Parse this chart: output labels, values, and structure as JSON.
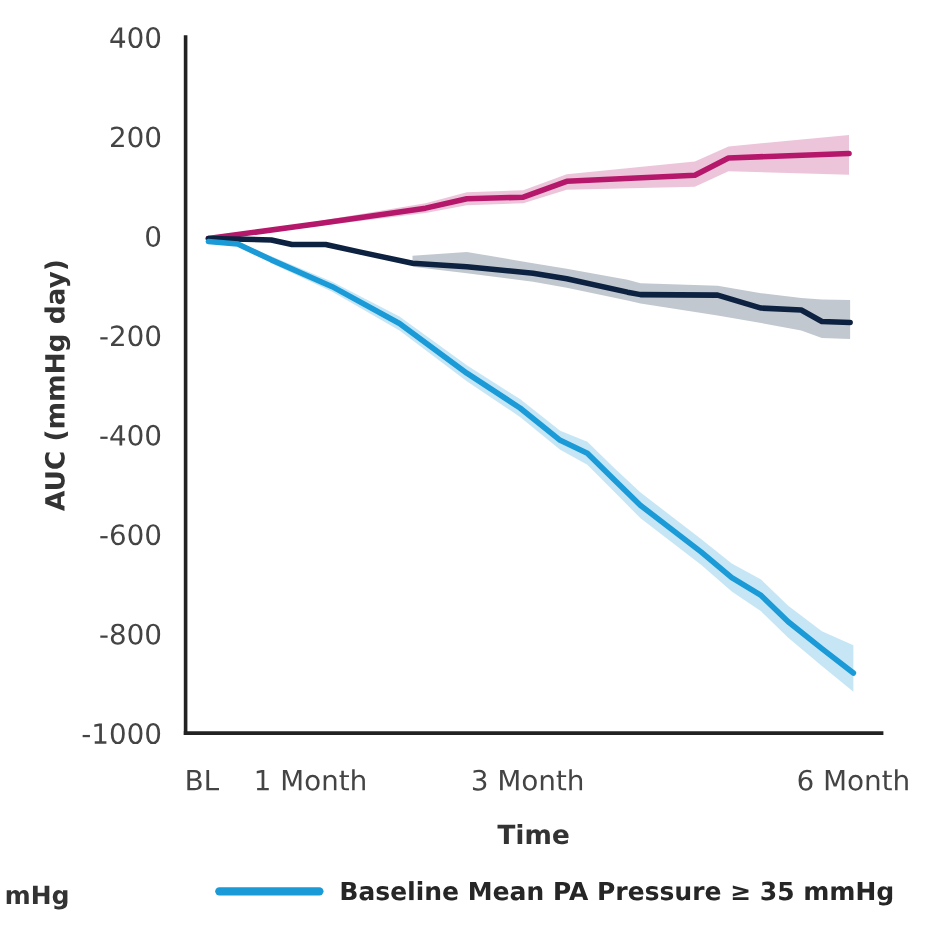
{
  "chart_data": {
    "type": "line",
    "xlabel": "Time",
    "ylabel": "AUC (mmHg day)",
    "xlim": [
      -0.15,
      6.26
    ],
    "xticks": [
      {
        "value": 0,
        "label": "BL"
      },
      {
        "value": 1,
        "label": "1 Month"
      },
      {
        "value": 3,
        "label": "3 Month"
      },
      {
        "value": 6,
        "label": "6 Month"
      }
    ],
    "ylim": [
      -1000,
      400
    ],
    "yticks": [
      -1000,
      -800,
      -600,
      -400,
      -200,
      0,
      200,
      400
    ],
    "grid": false,
    "legend": "bottom",
    "line_style": "solid",
    "marker": "none",
    "annotations": [
      "mHg"
    ],
    "series": [
      {
        "color": "#b5186b",
        "x": [
          0.06,
          1.08,
          2.06,
          2.44,
          2.96,
          3.36,
          4.54,
          4.85,
          5.96
        ],
        "values": [
          -5,
          25,
          56,
          75,
          78,
          110,
          122,
          157,
          166
        ],
        "lower": [
          -5,
          20,
          46,
          62,
          66,
          93,
          99,
          130,
          123
        ],
        "upper": [
          -5,
          30,
          66,
          88,
          92,
          124,
          150,
          180,
          203
        ]
      },
      {
        "color": "#0d2240",
        "x": [
          0.06,
          0.64,
          0.83,
          1.14,
          1.45,
          1.94,
          2.44,
          3.05,
          3.36,
          3.92,
          4.04,
          4.75,
          5.15,
          5.52,
          5.71,
          5.97
        ],
        "values": [
          -5,
          -8,
          -17,
          -17,
          -32,
          -55,
          -62,
          -75,
          -86,
          -113,
          -118,
          -119,
          -145,
          -149,
          -172,
          -174
        ],
        "lower": [
          null,
          null,
          null,
          null,
          null,
          -62,
          -75,
          -92,
          -104,
          -130,
          -136,
          -160,
          -175,
          -190,
          -205,
          -207
        ],
        "upper": [
          null,
          null,
          null,
          null,
          null,
          -40,
          -32,
          -55,
          -66,
          -88,
          -95,
          -100,
          -115,
          -125,
          -128,
          -129
        ]
      },
      {
        "name": "Baseline Mean PA Pressure ≥ 35 mmHg",
        "color": "#1a9ad6",
        "x": [
          0.06,
          0.33,
          0.64,
          1.2,
          1.82,
          2.44,
          2.93,
          3.3,
          3.55,
          3.8,
          4.04,
          4.6,
          4.88,
          5.15,
          5.4,
          5.71,
          6.0
        ],
        "values": [
          -11,
          -16,
          -48,
          -102,
          -176,
          -276,
          -346,
          -411,
          -437,
          -491,
          -542,
          -636,
          -687,
          -723,
          -776,
          -830,
          -879
        ],
        "lower": [
          -11,
          -20,
          -55,
          -112,
          -190,
          -292,
          -364,
          -430,
          -460,
          -515,
          -568,
          -662,
          -715,
          -755,
          -808,
          -865,
          -917
        ],
        "upper": [
          -11,
          -12,
          -41,
          -92,
          -162,
          -260,
          -328,
          -392,
          -414,
          -467,
          -516,
          -610,
          -659,
          -691,
          -744,
          -795,
          -823
        ]
      }
    ]
  }
}
